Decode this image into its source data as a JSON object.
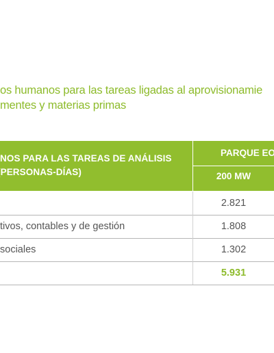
{
  "title": {
    "line1": "os humanos para las tareas ligadas al aprovisionamie",
    "line2": "mentes y materias primas"
  },
  "table": {
    "header": {
      "left_line1": "NOS PARA LAS TAREAS DE ANÁLISIS",
      "left_line2": "(PERSONAS-DÍAS)",
      "group": "PARQUE EO",
      "sub": "200 MW"
    },
    "rows": [
      {
        "label": "",
        "value": "2.821"
      },
      {
        "label": "tivos, contables y de gestión",
        "value": "1.808"
      },
      {
        "label": "sociales",
        "value": "1.302"
      }
    ],
    "total": {
      "label": "",
      "value": "5.931"
    }
  },
  "colors": {
    "accent_green": "#91be2e",
    "text_gray": "#555555"
  }
}
